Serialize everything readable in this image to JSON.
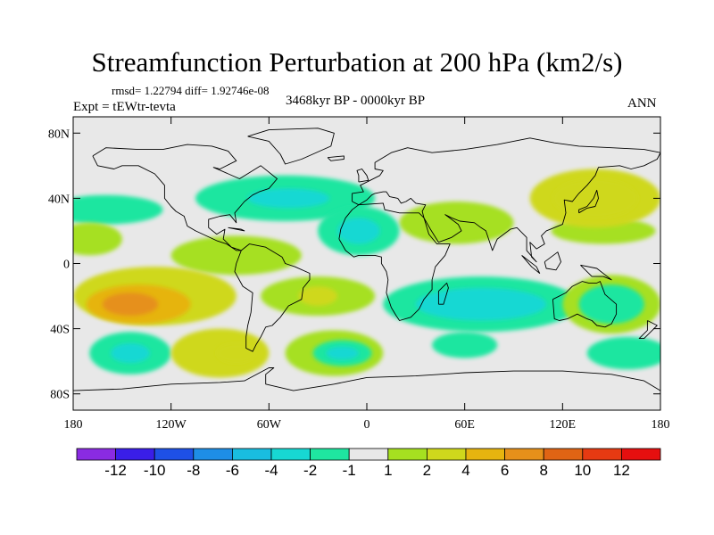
{
  "title": "Streamfunction Perturbation at 200 hPa (km2/s)",
  "stats": "rmsd= 1.22794  diff= 1.92746e-08",
  "subtitle": "3468kyr BP - 0000kyr BP",
  "experiment": "Expt = tEWtr-tevta",
  "season": "ANN",
  "map": {
    "lon_range": [
      -180,
      180
    ],
    "lat_range": [
      -90,
      90
    ],
    "lat_ticks": [
      {
        "value": 80,
        "label": "80N"
      },
      {
        "value": 40,
        "label": "40N"
      },
      {
        "value": 0,
        "label": "0"
      },
      {
        "value": -40,
        "label": "40S"
      },
      {
        "value": -80,
        "label": "80S"
      }
    ],
    "lon_ticks": [
      {
        "value": -180,
        "label": "180"
      },
      {
        "value": -120,
        "label": "120W"
      },
      {
        "value": -60,
        "label": "60W"
      },
      {
        "value": 0,
        "label": "0"
      },
      {
        "value": 60,
        "label": "60E"
      },
      {
        "value": 120,
        "label": "120E"
      },
      {
        "value": 180,
        "label": "180"
      }
    ],
    "background_color": "#e8e8e8",
    "anomalies": [
      {
        "lon": -50,
        "lat": 40,
        "rlon": 55,
        "rlat": 14,
        "value": -1.5
      },
      {
        "lon": -48,
        "lat": 40,
        "rlon": 25,
        "rlat": 6,
        "value": -2.5
      },
      {
        "lon": -160,
        "lat": 33,
        "rlon": 35,
        "rlat": 9,
        "value": -1.5
      },
      {
        "lon": -5,
        "lat": 20,
        "rlon": 25,
        "rlat": 15,
        "value": -1.5
      },
      {
        "lon": -5,
        "lat": 20,
        "rlon": 13,
        "rlat": 8,
        "value": -2.5
      },
      {
        "lon": 140,
        "lat": 40,
        "rlon": 40,
        "rlat": 18,
        "value": 2
      },
      {
        "lon": 140,
        "lat": 40,
        "rlon": 26,
        "rlat": 12,
        "value": 3.5
      },
      {
        "lon": 145,
        "lat": 20,
        "rlon": 32,
        "rlat": 8,
        "value": 1.5
      },
      {
        "lon": 55,
        "lat": 25,
        "rlon": 35,
        "rlat": 13,
        "value": 1.5
      },
      {
        "lon": -170,
        "lat": 15,
        "rlon": 20,
        "rlat": 10,
        "value": 1.5
      },
      {
        "lon": -80,
        "lat": 5,
        "rlon": 40,
        "rlat": 12,
        "value": 1.5
      },
      {
        "lon": -30,
        "lat": -20,
        "rlon": 35,
        "rlat": 12,
        "value": 1.5
      },
      {
        "lon": -30,
        "lat": -20,
        "rlon": 12,
        "rlat": 6,
        "value": 3
      },
      {
        "lon": -130,
        "lat": -20,
        "rlon": 50,
        "rlat": 18,
        "value": 2
      },
      {
        "lon": -140,
        "lat": -25,
        "rlon": 32,
        "rlat": 12,
        "value": 4
      },
      {
        "lon": -145,
        "lat": -25,
        "rlon": 17,
        "rlat": 7,
        "value": 6
      },
      {
        "lon": -90,
        "lat": -55,
        "rlon": 30,
        "rlat": 15,
        "value": 2
      },
      {
        "lon": -80,
        "lat": -55,
        "rlon": 12,
        "rlat": 6,
        "value": 3
      },
      {
        "lon": -145,
        "lat": -55,
        "rlon": 25,
        "rlat": 13,
        "value": -1.5
      },
      {
        "lon": -145,
        "lat": -55,
        "rlon": 12,
        "rlat": 6,
        "value": -2.5
      },
      {
        "lon": -20,
        "lat": -55,
        "rlon": 30,
        "rlat": 14,
        "value": 1.5
      },
      {
        "lon": -15,
        "lat": -55,
        "rlon": 18,
        "rlat": 8,
        "value": -1.5
      },
      {
        "lon": -15,
        "lat": -55,
        "rlon": 10,
        "rlat": 4,
        "value": -2.5
      },
      {
        "lon": 70,
        "lat": -25,
        "rlon": 60,
        "rlat": 17,
        "value": -1.5
      },
      {
        "lon": 70,
        "lat": -25,
        "rlon": 40,
        "rlat": 10,
        "value": -2.5
      },
      {
        "lon": 150,
        "lat": -25,
        "rlon": 30,
        "rlat": 18,
        "value": 1.5
      },
      {
        "lon": 150,
        "lat": -25,
        "rlon": 20,
        "rlat": 12,
        "value": -1.5
      },
      {
        "lon": 160,
        "lat": -55,
        "rlon": 25,
        "rlat": 10,
        "value": -1.5
      },
      {
        "lon": 60,
        "lat": -50,
        "rlon": 20,
        "rlat": 8,
        "value": -1.5
      }
    ]
  },
  "colorbar": {
    "colors": [
      "#8a2be2",
      "#3a1ee8",
      "#1e50e6",
      "#1e8ee6",
      "#19bde0",
      "#17d8d3",
      "#1fe6a0",
      "#e8e8e8",
      "#a6e020",
      "#cfd81c",
      "#e6b40f",
      "#e6901a",
      "#e06414",
      "#e63a12",
      "#e60f0f"
    ],
    "labels": [
      "-12",
      "-10",
      "-8",
      "-6",
      "-4",
      "-2",
      "-1",
      "1",
      "2",
      "4",
      "6",
      "8",
      "10",
      "12"
    ]
  },
  "land_outlines": [
    {
      "name": "North America",
      "points": [
        [
          -168,
          66
        ],
        [
          -160,
          71
        ],
        [
          -140,
          70
        ],
        [
          -125,
          70
        ],
        [
          -110,
          73
        ],
        [
          -95,
          72
        ],
        [
          -85,
          69
        ],
        [
          -80,
          63
        ],
        [
          -90,
          58
        ],
        [
          -94,
          59
        ],
        [
          -78,
          52
        ],
        [
          -65,
          60
        ],
        [
          -55,
          52
        ],
        [
          -60,
          46
        ],
        [
          -66,
          44
        ],
        [
          -70,
          42
        ],
        [
          -75,
          38
        ],
        [
          -81,
          31
        ],
        [
          -80,
          25
        ],
        [
          -84,
          30
        ],
        [
          -90,
          29
        ],
        [
          -97,
          27
        ],
        [
          -97,
          22
        ],
        [
          -92,
          18
        ],
        [
          -87,
          21
        ],
        [
          -88,
          15
        ],
        [
          -83,
          10
        ],
        [
          -77,
          8
        ],
        [
          -80,
          8
        ],
        [
          -86,
          12
        ],
        [
          -92,
          14
        ],
        [
          -105,
          20
        ],
        [
          -110,
          23
        ],
        [
          -112,
          29
        ],
        [
          -117,
          32
        ],
        [
          -120,
          35
        ],
        [
          -124,
          40
        ],
        [
          -124,
          48
        ],
        [
          -130,
          55
        ],
        [
          -140,
          60
        ],
        [
          -150,
          60
        ],
        [
          -155,
          58
        ],
        [
          -165,
          60
        ],
        [
          -168,
          66
        ]
      ]
    },
    {
      "name": "South America",
      "points": [
        [
          -77,
          8
        ],
        [
          -72,
          12
        ],
        [
          -62,
          10
        ],
        [
          -52,
          4
        ],
        [
          -50,
          0
        ],
        [
          -44,
          -2
        ],
        [
          -35,
          -6
        ],
        [
          -35,
          -10
        ],
        [
          -39,
          -15
        ],
        [
          -40,
          -22
        ],
        [
          -48,
          -26
        ],
        [
          -53,
          -33
        ],
        [
          -58,
          -38
        ],
        [
          -62,
          -39
        ],
        [
          -65,
          -45
        ],
        [
          -68,
          -50
        ],
        [
          -70,
          -54
        ],
        [
          -74,
          -52
        ],
        [
          -74,
          -45
        ],
        [
          -73,
          -38
        ],
        [
          -71,
          -30
        ],
        [
          -70,
          -18
        ],
        [
          -76,
          -14
        ],
        [
          -81,
          -5
        ],
        [
          -80,
          0
        ],
        [
          -77,
          8
        ]
      ]
    },
    {
      "name": "Greenland",
      "points": [
        [
          -73,
          78
        ],
        [
          -60,
          82
        ],
        [
          -30,
          83
        ],
        [
          -20,
          80
        ],
        [
          -22,
          72
        ],
        [
          -40,
          64
        ],
        [
          -50,
          61
        ],
        [
          -53,
          67
        ],
        [
          -60,
          75
        ],
        [
          -73,
          78
        ]
      ]
    },
    {
      "name": "Africa",
      "points": [
        [
          -17,
          15
        ],
        [
          -16,
          21
        ],
        [
          -13,
          28
        ],
        [
          -9,
          33
        ],
        [
          -5,
          36
        ],
        [
          10,
          37
        ],
        [
          11,
          33
        ],
        [
          20,
          31
        ],
        [
          32,
          31
        ],
        [
          35,
          28
        ],
        [
          38,
          18
        ],
        [
          43,
          12
        ],
        [
          51,
          12
        ],
        [
          48,
          5
        ],
        [
          42,
          -2
        ],
        [
          40,
          -10
        ],
        [
          40,
          -16
        ],
        [
          35,
          -22
        ],
        [
          32,
          -28
        ],
        [
          27,
          -33
        ],
        [
          20,
          -35
        ],
        [
          18,
          -32
        ],
        [
          15,
          -27
        ],
        [
          12,
          -18
        ],
        [
          13,
          -10
        ],
        [
          12,
          -5
        ],
        [
          9,
          0
        ],
        [
          9,
          4
        ],
        [
          5,
          5
        ],
        [
          -5,
          5
        ],
        [
          -8,
          4
        ],
        [
          -13,
          8
        ],
        [
          -17,
          15
        ]
      ]
    },
    {
      "name": "Eurasia",
      "points": [
        [
          -9,
          38
        ],
        [
          -9,
          43
        ],
        [
          -2,
          44
        ],
        [
          -4,
          48
        ],
        [
          2,
          51
        ],
        [
          8,
          54
        ],
        [
          10,
          57
        ],
        [
          5,
          58
        ],
        [
          5,
          62
        ],
        [
          15,
          68
        ],
        [
          25,
          71
        ],
        [
          40,
          68
        ],
        [
          60,
          70
        ],
        [
          80,
          73
        ],
        [
          100,
          77
        ],
        [
          115,
          74
        ],
        [
          130,
          72
        ],
        [
          150,
          71
        ],
        [
          170,
          70
        ],
        [
          180,
          68
        ],
        [
          178,
          64
        ],
        [
          170,
          60
        ],
        [
          162,
          58
        ],
        [
          155,
          60
        ],
        [
          142,
          59
        ],
        [
          140,
          54
        ],
        [
          135,
          48
        ],
        [
          130,
          43
        ],
        [
          126,
          38
        ],
        [
          121,
          39
        ],
        [
          122,
          31
        ],
        [
          120,
          24
        ],
        [
          110,
          20
        ],
        [
          107,
          17
        ],
        [
          109,
          12
        ],
        [
          104,
          9
        ],
        [
          100,
          13
        ],
        [
          101,
          4
        ],
        [
          104,
          1
        ],
        [
          98,
          8
        ],
        [
          98,
          16
        ],
        [
          94,
          20
        ],
        [
          92,
          22
        ],
        [
          88,
          21
        ],
        [
          80,
          15
        ],
        [
          77,
          8
        ],
        [
          73,
          20
        ],
        [
          70,
          22
        ],
        [
          66,
          25
        ],
        [
          57,
          26
        ],
        [
          52,
          28
        ],
        [
          48,
          30
        ],
        [
          56,
          24
        ],
        [
          58,
          20
        ],
        [
          52,
          16
        ],
        [
          44,
          13
        ],
        [
          39,
          21
        ],
        [
          35,
          28
        ],
        [
          34,
          32
        ],
        [
          36,
          36
        ],
        [
          30,
          37
        ],
        [
          27,
          40
        ],
        [
          24,
          38
        ],
        [
          21,
          37
        ],
        [
          19,
          40
        ],
        [
          14,
          41
        ],
        [
          12,
          44
        ],
        [
          10,
          44
        ],
        [
          5,
          43
        ],
        [
          3,
          42
        ],
        [
          0,
          39
        ],
        [
          -5,
          36
        ],
        [
          -9,
          38
        ]
      ]
    },
    {
      "name": "Australia",
      "points": [
        [
          114,
          -22
        ],
        [
          115,
          -34
        ],
        [
          118,
          -35
        ],
        [
          123,
          -34
        ],
        [
          129,
          -31
        ],
        [
          135,
          -34
        ],
        [
          138,
          -35
        ],
        [
          141,
          -38
        ],
        [
          146,
          -39
        ],
        [
          150,
          -37
        ],
        [
          153,
          -31
        ],
        [
          153,
          -25
        ],
        [
          146,
          -19
        ],
        [
          143,
          -11
        ],
        [
          141,
          -12
        ],
        [
          136,
          -12
        ],
        [
          132,
          -11
        ],
        [
          126,
          -14
        ],
        [
          122,
          -18
        ],
        [
          114,
          -22
        ]
      ]
    },
    {
      "name": "Antarctica",
      "points": [
        [
          -180,
          -78
        ],
        [
          -150,
          -77
        ],
        [
          -120,
          -74
        ],
        [
          -90,
          -73
        ],
        [
          -75,
          -72
        ],
        [
          -60,
          -64
        ],
        [
          -57,
          -64
        ],
        [
          -62,
          -68
        ],
        [
          -62,
          -74
        ],
        [
          -45,
          -78
        ],
        [
          -20,
          -74
        ],
        [
          0,
          -70
        ],
        [
          30,
          -69
        ],
        [
          60,
          -67
        ],
        [
          90,
          -66
        ],
        [
          120,
          -66
        ],
        [
          150,
          -68
        ],
        [
          170,
          -72
        ],
        [
          180,
          -78
        ]
      ]
    },
    {
      "name": "Madagascar",
      "points": [
        [
          44,
          -25
        ],
        [
          47,
          -25
        ],
        [
          50,
          -15
        ],
        [
          49,
          -12
        ],
        [
          44,
          -17
        ],
        [
          44,
          -25
        ]
      ]
    },
    {
      "name": "Britain",
      "points": [
        [
          -5,
          50
        ],
        [
          1,
          51
        ],
        [
          0,
          54
        ],
        [
          -3,
          58
        ],
        [
          -6,
          57
        ],
        [
          -5,
          54
        ],
        [
          -5,
          50
        ]
      ]
    },
    {
      "name": "Japan",
      "points": [
        [
          130,
          31
        ],
        [
          135,
          34
        ],
        [
          140,
          35
        ],
        [
          142,
          40
        ],
        [
          141,
          45
        ],
        [
          139,
          40
        ],
        [
          135,
          35
        ],
        [
          130,
          33
        ],
        [
          130,
          31
        ]
      ]
    },
    {
      "name": "New Guinea",
      "points": [
        [
          131,
          -1
        ],
        [
          141,
          -3
        ],
        [
          150,
          -10
        ],
        [
          145,
          -8
        ],
        [
          138,
          -8
        ],
        [
          131,
          -1
        ]
      ]
    },
    {
      "name": "Borneo",
      "points": [
        [
          109,
          1
        ],
        [
          117,
          7
        ],
        [
          119,
          1
        ],
        [
          116,
          -4
        ],
        [
          110,
          -3
        ],
        [
          109,
          1
        ]
      ]
    },
    {
      "name": "Sumatra",
      "points": [
        [
          95,
          5
        ],
        [
          104,
          -2
        ],
        [
          106,
          -6
        ],
        [
          101,
          -2
        ],
        [
          95,
          5
        ]
      ]
    },
    {
      "name": "New Zealand",
      "points": [
        [
          172,
          -35
        ],
        [
          178,
          -38
        ],
        [
          174,
          -42
        ],
        [
          170,
          -46
        ],
        [
          167,
          -46
        ],
        [
          172,
          -41
        ],
        [
          172,
          -35
        ]
      ]
    },
    {
      "name": "Iceland",
      "points": [
        [
          -24,
          65
        ],
        [
          -14,
          66
        ],
        [
          -14,
          64
        ],
        [
          -22,
          63
        ],
        [
          -24,
          65
        ]
      ]
    },
    {
      "name": "Cuba",
      "points": [
        [
          -85,
          22
        ],
        [
          -75,
          20
        ],
        [
          -77,
          21
        ],
        [
          -85,
          22
        ]
      ]
    }
  ]
}
